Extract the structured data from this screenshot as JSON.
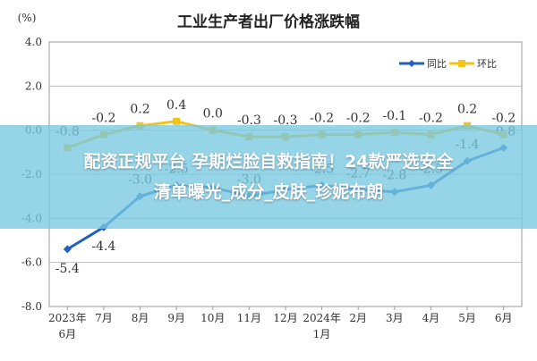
{
  "chart_data": {
    "type": "line",
    "title": "工业生产者出厂价格涨跌幅",
    "ylabel": "(%)",
    "categories": [
      [
        "2023年",
        "6月"
      ],
      [
        "7月"
      ],
      [
        "8月"
      ],
      [
        "9月"
      ],
      [
        "10月"
      ],
      [
        "11月"
      ],
      [
        "12月"
      ],
      [
        "2024年",
        "1月"
      ],
      [
        "2月"
      ],
      [
        "3月"
      ],
      [
        "4月"
      ],
      [
        "5月"
      ],
      [
        "6月"
      ]
    ],
    "ylim": [
      -8.0,
      4.0
    ],
    "yticks": [
      "4.0",
      "2.0",
      "0.0",
      "-2.0",
      "-4.0",
      "-6.0",
      "-8.0"
    ],
    "ytick_values": [
      4,
      2,
      0,
      -2,
      -4,
      -6,
      -8
    ],
    "grid": true,
    "legend_position": "top-right",
    "series": [
      {
        "name": "同比",
        "color": "#1f5fbf",
        "values": [
          -5.4,
          -4.4,
          -3.0,
          -2.5,
          -2.6,
          -3.0,
          -2.7,
          -2.5,
          -2.7,
          -2.8,
          -2.5,
          -1.4,
          -0.8
        ],
        "labels": [
          "-5.4",
          "-4.4",
          "-3.0",
          "-2.5",
          "",
          "-3.0",
          "",
          "-2.5",
          "-2.7",
          "-2.8",
          "-2.5",
          "-1.4",
          "-0.8"
        ]
      },
      {
        "name": "环比",
        "color": "#f0c419",
        "values": [
          -0.8,
          -0.2,
          0.2,
          0.4,
          0.0,
          -0.3,
          -0.3,
          -0.2,
          -0.2,
          -0.1,
          -0.2,
          0.2,
          -0.2
        ],
        "labels": [
          "-0.8",
          "-0.2",
          "0.2",
          "0.4",
          "0.0",
          "-0.3",
          "-0.3",
          "-0.2",
          "-0.2",
          "-0.1",
          "-0.2",
          "0.2",
          "-0.2"
        ]
      }
    ]
  },
  "overlay": {
    "line1": "配资正规平台 孕期烂脸自救指南！24款严选安全",
    "line2": "清单曝光_成分_皮肤_珍妮布朗"
  }
}
